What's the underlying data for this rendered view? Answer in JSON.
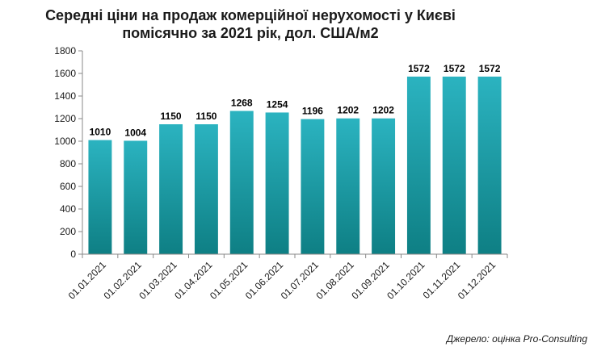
{
  "chart_data": {
    "type": "bar",
    "title_lines": [
      "Середні ціни на продаж комерційної нерухомості у Києві",
      "помісячно за 2021 рік, дол. США/м2"
    ],
    "categories": [
      "01.01.2021",
      "01.02.2021",
      "01.03.2021",
      "01.04.2021",
      "01.05.2021",
      "01.06.2021",
      "01.07.2021",
      "01.08.2021",
      "01.09.2021",
      "01.10.2021",
      "01.11.2021",
      "01.12.2021"
    ],
    "values": [
      1010,
      1004,
      1150,
      1150,
      1268,
      1254,
      1196,
      1202,
      1202,
      1572,
      1572,
      1572
    ],
    "yticks": [
      0,
      200,
      400,
      600,
      800,
      1000,
      1200,
      1400,
      1600,
      1800
    ],
    "ylim": [
      0,
      1800
    ],
    "grid": false,
    "legend": "none",
    "data_labels": true,
    "bar_color_top": "#2bb3c0",
    "bar_color_bottom": "#0e7f84"
  },
  "source_note": "Джерело: оцінка Pro-Consulting"
}
